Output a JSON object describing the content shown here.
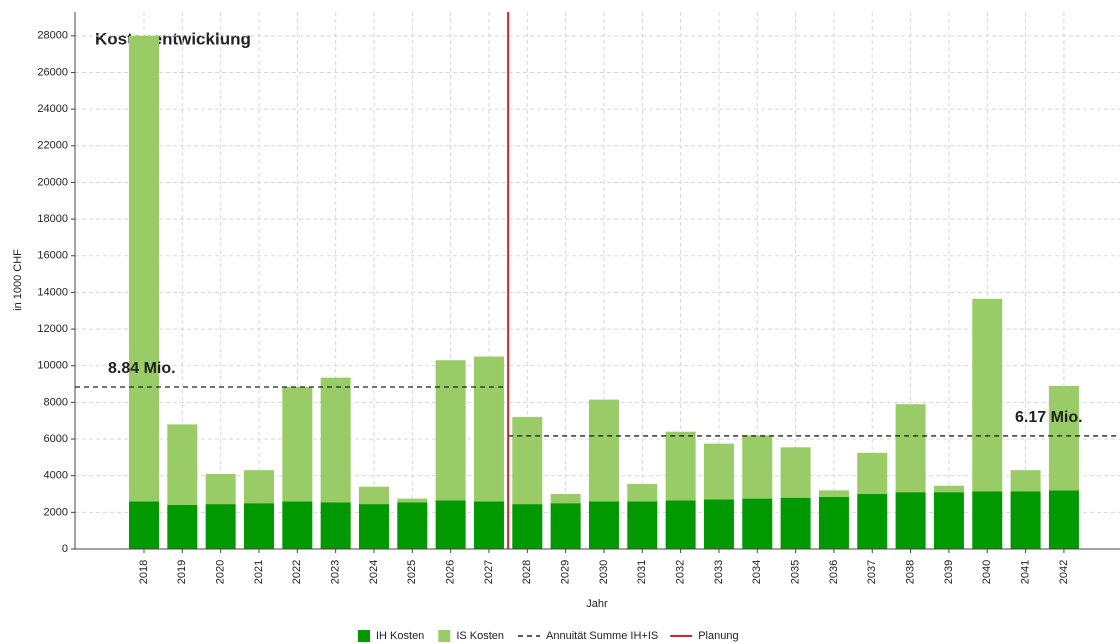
{
  "chart_data": {
    "type": "stacked_bar",
    "title": "Kostenentwicklung",
    "x_label": "Jahr",
    "y_label": "in 1000 CHF",
    "categories": [
      "2018",
      "2019",
      "2020",
      "2021",
      "2022",
      "2023",
      "2024",
      "2025",
      "2026",
      "2027",
      "2028",
      "2029",
      "2030",
      "2031",
      "2032",
      "2033",
      "2034",
      "2035",
      "2036",
      "2037",
      "2038",
      "2039",
      "2040",
      "2041",
      "2042"
    ],
    "series": [
      {
        "name": "IH Kosten",
        "color": "#009900",
        "values": [
          2600,
          2400,
          2450,
          2500,
          2600,
          2550,
          2450,
          2550,
          2650,
          2600,
          2450,
          2500,
          2600,
          2600,
          2650,
          2700,
          2750,
          2800,
          2850,
          3000,
          3100,
          3100,
          3150,
          3150,
          3200
        ]
      },
      {
        "name": "IS Kosten",
        "color": "#99cc66",
        "values": [
          25400,
          4400,
          1650,
          1800,
          6250,
          6800,
          950,
          200,
          7650,
          7900,
          4750,
          500,
          5550,
          950,
          3750,
          3050,
          3450,
          2750,
          350,
          2250,
          4800,
          350,
          10500,
          1150,
          5700
        ]
      }
    ],
    "annuity": {
      "name": "Annuität Summe IH+IS",
      "color": "#222222",
      "values": [
        8840,
        6170
      ],
      "value_labels": [
        "8.84  Mio.",
        "6.17 Mio."
      ]
    },
    "planning": {
      "name": "Planung",
      "color": "#dd2222",
      "x": 2027.5
    },
    "ylim": [
      0,
      29300
    ],
    "yticks": [
      0,
      2000,
      4000,
      6000,
      8000,
      10000,
      12000,
      14000,
      16000,
      18000,
      20000,
      22000,
      24000,
      26000,
      28000
    ],
    "grid": true
  }
}
